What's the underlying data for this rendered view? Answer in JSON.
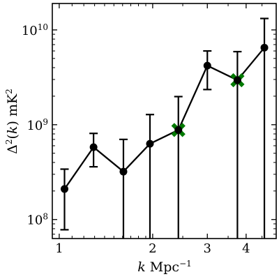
{
  "chart_data": {
    "type": "line",
    "title": "",
    "xlabel": {
      "base": "k Mpc",
      "sup": "−1"
    },
    "ylabel": {
      "pre": "Δ",
      "sup1": "2",
      "mid": "(k) mK",
      "sup2": "2"
    },
    "xscale": "log",
    "yscale": "log",
    "xlim": [
      0.95,
      5.0
    ],
    "ylim": [
      63000000.0,
      19000000000.0
    ],
    "grid": false,
    "x_ticks": [
      {
        "value": 1,
        "label": "1"
      },
      {
        "value": 2,
        "label": "2"
      },
      {
        "value": 3,
        "label": "3"
      },
      {
        "value": 4,
        "label": "4"
      }
    ],
    "y_ticks": [
      {
        "value": 100000000.0,
        "base": "10",
        "exp": "8"
      },
      {
        "value": 1000000000.0,
        "base": "10",
        "exp": "9"
      },
      {
        "value": 10000000000.0,
        "base": "10",
        "exp": "10"
      }
    ],
    "series": [
      {
        "color": "#000000",
        "marker": "circle",
        "points": [
          {
            "x": 1.04,
            "y": 210000000.0,
            "yerr_low": 78000000.0,
            "yerr_high": 340000000.0
          },
          {
            "x": 1.29,
            "y": 580000000.0,
            "yerr_low": 360000000.0,
            "yerr_high": 810000000.0
          },
          {
            "x": 1.61,
            "y": 320000000.0,
            "yerr_low": 63000000.0,
            "yerr_high": 700000000.0
          },
          {
            "x": 1.96,
            "y": 630000000.0,
            "yerr_low": 63000000.0,
            "yerr_high": 1280000000.0
          },
          {
            "x": 2.42,
            "y": 880000000.0,
            "yerr_low": 63000000.0,
            "yerr_high": 1980000000.0
          },
          {
            "x": 3.0,
            "y": 4200000000.0,
            "yerr_low": 2350000000.0,
            "yerr_high": 6000000000.0
          },
          {
            "x": 3.75,
            "y": 2950000000.0,
            "yerr_low": 63000000.0,
            "yerr_high": 5900000000.0
          },
          {
            "x": 4.58,
            "y": 6500000000.0,
            "yerr_low": 63000000.0,
            "yerr_high": 13200000000.0
          }
        ]
      },
      {
        "color": "#007a00",
        "marker": "x",
        "points": [
          {
            "x": 2.42,
            "y": 880000000.0
          },
          {
            "x": 3.75,
            "y": 2950000000.0
          }
        ]
      }
    ]
  }
}
